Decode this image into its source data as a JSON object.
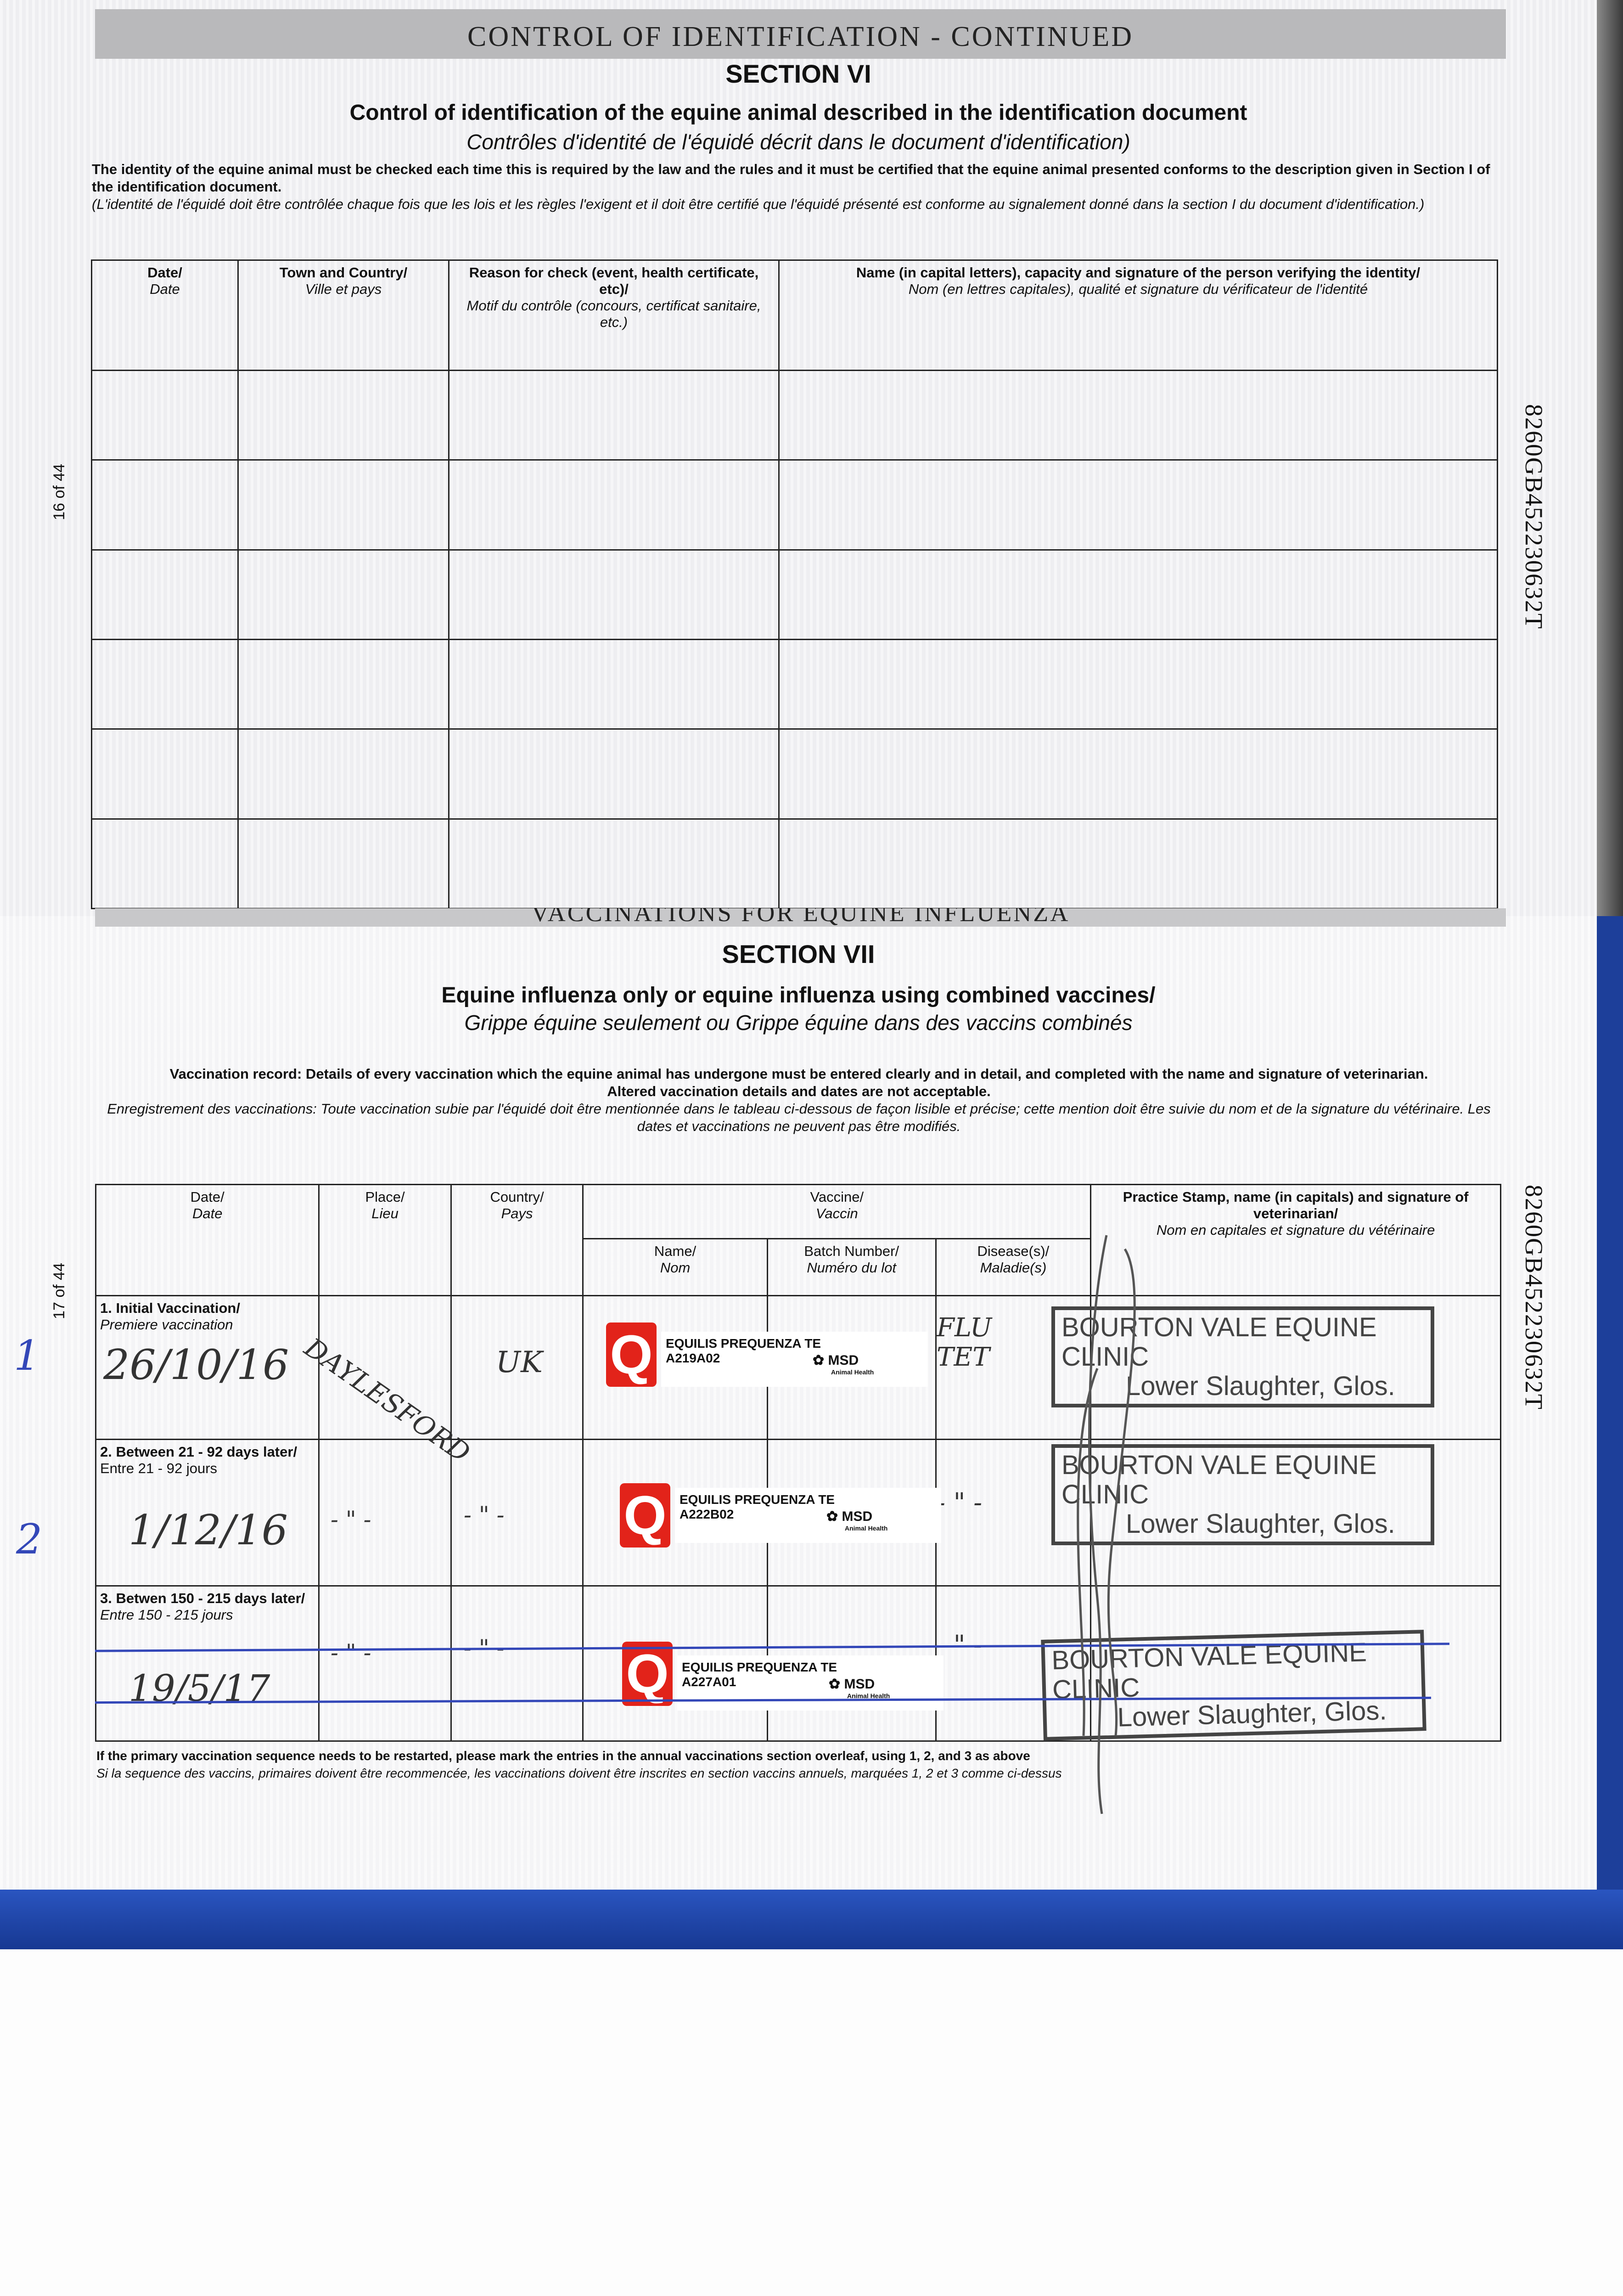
{
  "top_page": {
    "band": "CONTROL OF IDENTIFICATION - CONTINUED",
    "section": "SECTION VI",
    "title_en": "Control of identification of the equine animal described in the identification document",
    "title_fr": "Contrôles d'identité de l'équidé décrit dans le document d'identification)",
    "para_en": "The identity of the equine animal must be checked each time this is required by the law and the rules and it must be certified that the equine animal presented conforms to the description given in Section I of the identification document.",
    "para_fr": "(L'identité de l'équidé doit être contrôlée chaque fois que les lois et les règles l'exigent et il doit être certifié que l'équidé présenté est conforme au signalement donné dans la section I du document d'identification.)",
    "page_number": "16 of 44",
    "document_number": "8260GB452230632T",
    "table": {
      "headers": [
        {
          "en": "Date/",
          "fr": "Date"
        },
        {
          "en": "Town and Country/",
          "fr": "Ville et pays"
        },
        {
          "en": "Reason for check (event, health certificate, etc)/",
          "fr": "Motif du contrôle (concours, certificat sanitaire, etc.)"
        },
        {
          "en": "Name (in capital letters), capacity and signature of the person verifying the identity/",
          "fr": "Nom (en lettres capitales), qualité et signature du vérificateur de l'identité"
        }
      ],
      "empty_rows": 6
    }
  },
  "bottom_page": {
    "band": "VACCINATIONS FOR EQUINE INFLUENZA",
    "section": "SECTION VII",
    "title_en": "Equine influenza only or equine influenza using combined vaccines/",
    "title_fr": "Grippe équine seulement ou Grippe équine dans des vaccins combinés",
    "para_en_1": "Vaccination record: Details of every vaccination which the equine animal has undergone must be entered clearly and in detail, and completed with the name and signature of veterinarian.",
    "para_en_2": "Altered vaccination details and dates are not acceptable.",
    "para_fr": "Enregistrement des vaccinations: Toute vaccination subie par l'équidé doit être mentionnée dans le tableau ci-dessous de façon lisible et précise; cette mention doit être suivie du nom et de la signature du vétérinaire. Les dates et vaccinations ne peuvent pas être modifiés.",
    "page_number": "17 of 44",
    "document_number": "8260GB452230632T",
    "margin_notes": [
      "1",
      "2"
    ],
    "table": {
      "headers": {
        "date": {
          "en": "Date/",
          "fr": "Date"
        },
        "place": {
          "en": "Place/",
          "fr": "Lieu"
        },
        "country": {
          "en": "Country/",
          "fr": "Pays"
        },
        "vaccine": {
          "en": "Vaccine/",
          "fr": "Vaccin"
        },
        "name": {
          "en": "Name/",
          "fr": "Nom"
        },
        "batch": {
          "en": "Batch Number/",
          "fr": "Numéro du lot"
        },
        "disease": {
          "en": "Disease(s)/",
          "fr": "Maladie(s)"
        },
        "stamp": {
          "en": "Practice Stamp, name (in capitals) and signature of veterinarian/",
          "fr": "Nom en capitales et signature du vétérinaire"
        }
      },
      "rows": [
        {
          "label_en": "1. Initial Vaccination/",
          "label_fr": "Premiere vaccination",
          "date": "26/10/16",
          "place": "DAYLESFORD",
          "country": "UK",
          "vaccine": "EQUILIS PREQUENZA TE",
          "batch": "A219A02",
          "disease": "FLU TET",
          "stamp_1": "BOURTON VALE EQUINE CLINIC",
          "stamp_2": "Lower Slaughter, Glos.",
          "struck": false
        },
        {
          "label_en": "2. Between 21 - 92 days later/",
          "label_fr": "Entre 21 - 92 jours",
          "date": "1/12/16",
          "place": "- \" -",
          "country": "- \" -",
          "vaccine": "EQUILIS PREQUENZA TE",
          "batch": "A222B02",
          "disease": "- \" -",
          "stamp_1": "BOURTON VALE EQUINE CLINIC",
          "stamp_2": "Lower Slaughter, Glos.",
          "struck": false
        },
        {
          "label_en": "3. Betwen 150 - 215 days later/",
          "label_fr": "Entre 150 - 215 jours",
          "date": "19/5/17",
          "place": "- \" -",
          "country": "- \" -",
          "vaccine": "EQUILIS PREQUENZA TE",
          "batch": "A227A01",
          "disease": "- \" -",
          "stamp_1": "BOURTON VALE EQUINE CLINIC",
          "stamp_2": "Lower Slaughter, Glos.",
          "struck": true
        }
      ],
      "label_brand": "MSD",
      "label_brand_sub": "Animal Health",
      "label_logo_letter": "Q"
    },
    "footer_en": "If the primary vaccination sequence needs to be restarted, please mark the entries in the annual vaccinations section overleaf, using 1, 2, and 3 as above",
    "footer_fr": "Si la sequence des vaccins, primaires doivent être recommencée, les vaccinations doivent être inscrites en section vaccins annuels, marquées 1, 2 et 3 comme ci-dessus"
  },
  "colors": {
    "cover_blue": "#1d3f9a",
    "label_red": "#e2231a",
    "ink_blue": "#3347b8"
  }
}
